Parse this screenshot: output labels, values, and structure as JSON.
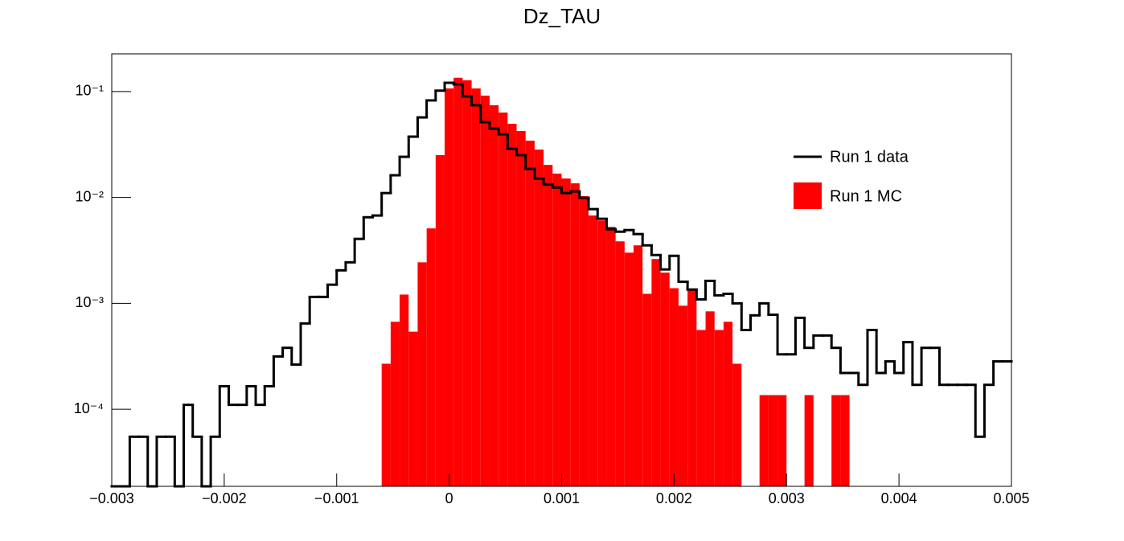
{
  "chart_data": {
    "type": "histogram",
    "title": "Dz_TAU",
    "bins": [
      -0.003,
      -0.00292,
      -0.00284,
      -0.00276,
      -0.00268,
      -0.0026,
      -0.00252,
      -0.00244,
      -0.00236,
      -0.00228,
      -0.0022,
      -0.00212,
      -0.00204,
      -0.00196,
      -0.00188,
      -0.0018,
      -0.00172,
      -0.00164,
      -0.00156,
      -0.00148,
      -0.0014,
      -0.00132,
      -0.00124,
      -0.00116,
      -0.00108,
      -0.001,
      -0.00092,
      -0.00084,
      -0.00076,
      -0.00068,
      -0.0006,
      -0.00052,
      -0.00044,
      -0.00036,
      -0.00028,
      -0.0002,
      -0.00012,
      -4e-05,
      4e-05,
      0.00012,
      0.0002,
      0.00028,
      0.00036,
      0.00044,
      0.00052,
      0.0006,
      0.00068,
      0.00076,
      0.00084,
      0.00092,
      0.001,
      0.00108,
      0.00116,
      0.00124,
      0.00132,
      0.0014,
      0.00148,
      0.00156,
      0.00164,
      0.00172,
      0.0018,
      0.00188,
      0.00196,
      0.00204,
      0.00212,
      0.0022,
      0.00228,
      0.00236,
      0.00244,
      0.00252,
      0.0026,
      0.00268,
      0.00276,
      0.00284,
      0.00292,
      0.003,
      0.00308,
      0.00316,
      0.00324,
      0.00332,
      0.0034,
      0.00348,
      0.00356,
      0.00364,
      0.00372,
      0.0038,
      0.00388,
      0.00396,
      0.00404,
      0.00412,
      0.0042,
      0.00428,
      0.00436,
      0.00444,
      0.00452,
      0.0046,
      0.00468,
      0.00476,
      0.00484,
      0.00492,
      0.005
    ],
    "series": [
      {
        "name": "Run 1 MC",
        "color": "#ff0000",
        "style": "fill",
        "values": [
          0,
          0,
          0,
          0,
          0,
          0,
          0,
          0,
          0,
          0,
          0,
          0,
          0,
          0,
          0,
          0,
          0,
          0,
          0,
          0,
          0,
          0,
          0,
          0,
          0,
          0,
          0,
          0,
          0,
          0,
          0.000269,
          0.00067,
          0.00121,
          0.00054,
          0.00244,
          0.0051,
          0.0251,
          0.107,
          0.135,
          0.128,
          0.107,
          0.0916,
          0.0743,
          0.0634,
          0.0496,
          0.0424,
          0.0344,
          0.0283,
          0.0203,
          0.0168,
          0.0151,
          0.0136,
          0.0103,
          0.00675,
          0.00607,
          0.00528,
          0.00385,
          0.00301,
          0.00353,
          0.00123,
          0.00262,
          0.00195,
          0.00139,
          0.00095,
          0.00136,
          0.00056,
          0.00084,
          0.00056,
          0.00067,
          0.000269,
          0,
          0,
          0.000136,
          0.000136,
          0.000136,
          0,
          0,
          0.000136,
          0,
          0,
          0.000136,
          0.000136,
          0,
          0,
          0,
          0,
          0,
          0,
          0,
          0,
          0,
          0,
          0,
          0,
          0,
          0,
          0,
          0,
          0,
          0
        ]
      },
      {
        "name": "Run 1 data",
        "color": "#000000",
        "style": "line",
        "values": [
          0,
          0,
          5.5e-05,
          5.5e-05,
          0,
          5.5e-05,
          5.5e-05,
          0,
          0.00011,
          5.5e-05,
          0,
          5.5e-05,
          0.000165,
          0.00011,
          0.00011,
          0.000165,
          0.00011,
          0.000165,
          0.000315,
          0.00038,
          0.000264,
          0.000646,
          0.00115,
          0.00115,
          0.0015,
          0.00205,
          0.00244,
          0.00406,
          0.0065,
          0.00675,
          0.011,
          0.0162,
          0.0242,
          0.0375,
          0.057,
          0.0825,
          0.102,
          0.121,
          0.117,
          0.09,
          0.0743,
          0.0514,
          0.0447,
          0.0395,
          0.0288,
          0.0251,
          0.0186,
          0.0151,
          0.0133,
          0.0124,
          0.011,
          0.0114,
          0.0099,
          0.00776,
          0.00629,
          0.00501,
          0.00475,
          0.00492,
          0.00451,
          0.00353,
          0.00286,
          0.00209,
          0.00281,
          0.0016,
          0.00135,
          0.00109,
          0.00163,
          0.00119,
          0.00123,
          0.001,
          0.00056,
          0.00077,
          0.001,
          0.00078,
          0.00033,
          0.00033,
          0.00073,
          0.00038,
          0.000497,
          0.000497,
          0.00038,
          0.00022,
          0.00022,
          0.00017,
          0.00056,
          0.00022,
          0.000283,
          0.00022,
          0.00043,
          0.00017,
          0.00038,
          0.00038,
          0.00017,
          0.00017,
          0.00017,
          0.00017,
          5.5e-05,
          0.00017,
          0.000283,
          0.000283
        ]
      }
    ],
    "xlim": [
      -0.003,
      0.005
    ],
    "xticks": [
      {
        "value": -0.003,
        "label": "−0.003"
      },
      {
        "value": -0.002,
        "label": "−0.002"
      },
      {
        "value": -0.001,
        "label": "−0.001"
      },
      0,
      0.001,
      0.002,
      0.003,
      0.004,
      0.005
    ],
    "ylim": [
      1.87e-05,
      0.227
    ],
    "log_y": true,
    "yticks": [
      {
        "value": 0.0001,
        "label": "10⁻⁴"
      },
      {
        "value": 0.001,
        "label": "10⁻³"
      },
      {
        "value": 0.01,
        "label": "10⁻²"
      },
      {
        "value": 0.1,
        "label": "10⁻¹"
      }
    ],
    "legend": "right"
  }
}
